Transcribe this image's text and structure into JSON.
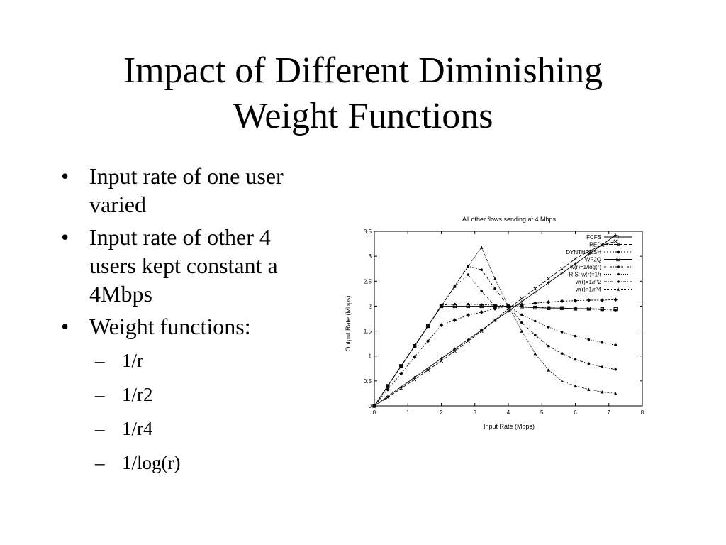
{
  "slide": {
    "title_line1": "Impact of Different Diminishing",
    "title_line2": "Weight Functions",
    "bullets": [
      {
        "marker": "•",
        "lines": [
          "Input rate of one user",
          "varied"
        ]
      },
      {
        "marker": "•",
        "lines": [
          "Input rate of other 4",
          "users kept constant a",
          "4Mbps"
        ]
      },
      {
        "marker": "•",
        "lines": [
          "Weight functions:"
        ]
      }
    ],
    "sub_bullets": [
      {
        "marker": "–",
        "text": "1/r"
      },
      {
        "marker": "–",
        "text": "1/r2"
      },
      {
        "marker": "–",
        "text": "1/r4"
      },
      {
        "marker": "–",
        "text": "1/log(r)"
      }
    ]
  },
  "chart_data": {
    "type": "line",
    "title": "All other flows sending at 4 Mbps",
    "xlabel": "Input Rate (Mbps)",
    "ylabel": "Output Rate (Mbps)",
    "xlim": [
      0,
      8
    ],
    "ylim": [
      0,
      3.5
    ],
    "x_ticks": [
      "0",
      "1",
      "2",
      "3",
      "4",
      "5",
      "6",
      "7",
      "8"
    ],
    "y_ticks": [
      "0",
      "0.5",
      "1",
      "1.5",
      "2",
      "2.5",
      "3",
      "3.5"
    ],
    "legend_position": "top-right",
    "grid": false,
    "series": [
      {
        "name": "FCFS",
        "marker": "+",
        "x": [
          0,
          0.4,
          0.8,
          1.2,
          1.6,
          2.0,
          2.4,
          2.8,
          3.2,
          3.6,
          4.0,
          4.4,
          4.8,
          5.2,
          5.6,
          6.0,
          6.4,
          6.8,
          7.2
        ],
        "values": [
          0,
          0.19,
          0.38,
          0.57,
          0.76,
          0.95,
          1.14,
          1.33,
          1.52,
          1.71,
          1.9,
          2.09,
          2.28,
          2.47,
          2.66,
          2.85,
          3.04,
          3.23,
          3.42
        ]
      },
      {
        "name": "RED",
        "marker": "x",
        "x": [
          0,
          0.4,
          0.8,
          1.2,
          1.6,
          2.0,
          2.4,
          2.8,
          3.2,
          3.6,
          4.0,
          4.4,
          4.8,
          5.2,
          5.6,
          6.0,
          6.4,
          6.8,
          7.2
        ],
        "values": [
          0,
          0.17,
          0.35,
          0.53,
          0.72,
          0.9,
          1.1,
          1.3,
          1.5,
          1.72,
          1.95,
          2.15,
          2.35,
          2.55,
          2.75,
          2.95,
          3.1,
          3.22,
          3.3
        ]
      },
      {
        "name": "DYNTHRESH",
        "marker": "diamond",
        "x": [
          0,
          0.4,
          0.8,
          1.2,
          1.6,
          2.0,
          2.4,
          2.8,
          3.2,
          3.6,
          4.0,
          4.4,
          4.8,
          5.2,
          5.6,
          6.0,
          6.4,
          6.8,
          7.2
        ],
        "values": [
          0,
          0.33,
          0.65,
          0.98,
          1.3,
          1.62,
          1.72,
          1.82,
          1.88,
          1.95,
          2.0,
          2.03,
          2.06,
          2.08,
          2.1,
          2.11,
          2.12,
          2.12,
          2.13
        ]
      },
      {
        "name": "WF2Q",
        "marker": "square",
        "x": [
          0,
          0.4,
          0.8,
          1.2,
          1.6,
          2.0,
          2.4,
          2.8,
          3.2,
          3.6,
          4.0,
          4.4,
          4.8,
          5.2,
          5.6,
          6.0,
          6.4,
          6.8,
          7.2
        ],
        "values": [
          0,
          0.4,
          0.8,
          1.2,
          1.6,
          2.0,
          2.0,
          2.0,
          2.0,
          2.0,
          2.0,
          1.98,
          1.97,
          1.96,
          1.96,
          1.95,
          1.95,
          1.94,
          1.94
        ]
      },
      {
        "name": "w(r)=1/log(r)",
        "marker": "dot",
        "x": [
          0,
          0.4,
          0.8,
          1.2,
          1.6,
          2.0,
          2.4,
          2.8,
          3.2,
          3.6,
          4.0,
          4.4,
          4.8,
          5.2,
          5.6,
          6.0,
          6.4,
          6.8,
          7.2
        ],
        "values": [
          0,
          0.4,
          0.8,
          1.2,
          1.6,
          2.02,
          2.04,
          2.04,
          2.03,
          2.02,
          2.0,
          1.99,
          1.98,
          1.97,
          1.96,
          1.95,
          1.94,
          1.93,
          1.92
        ]
      },
      {
        "name": "RIS: w(r)=1/r",
        "marker": "dot",
        "x": [
          0,
          0.4,
          0.8,
          1.2,
          1.6,
          2.0,
          2.4,
          2.8,
          3.2,
          3.6,
          4.0,
          4.4,
          4.8,
          5.2,
          5.6,
          6.0,
          6.4,
          6.8,
          7.2
        ],
        "values": [
          0,
          0.4,
          0.8,
          1.2,
          1.6,
          2.0,
          2.39,
          2.63,
          2.3,
          2.0,
          2.0,
          1.83,
          1.7,
          1.58,
          1.48,
          1.4,
          1.33,
          1.27,
          1.22
        ]
      },
      {
        "name": "w(r)=1/r^2",
        "marker": "dot",
        "x": [
          0,
          0.4,
          0.8,
          1.2,
          1.6,
          2.0,
          2.4,
          2.8,
          3.2,
          3.6,
          4.0,
          4.4,
          4.8,
          5.2,
          5.6,
          6.0,
          6.4,
          6.8,
          7.2
        ],
        "values": [
          0,
          0.4,
          0.8,
          1.2,
          1.6,
          2.0,
          2.4,
          2.8,
          2.73,
          2.35,
          2.0,
          1.67,
          1.42,
          1.2,
          1.05,
          0.93,
          0.85,
          0.78,
          0.73
        ]
      },
      {
        "name": "w(r)=1/r^4",
        "marker": "triangle",
        "x": [
          0,
          0.4,
          0.8,
          1.2,
          1.6,
          2.0,
          2.4,
          2.8,
          3.2,
          3.6,
          4.0,
          4.4,
          4.8,
          5.2,
          5.6,
          6.0,
          6.4,
          6.8,
          7.2
        ],
        "values": [
          0,
          0.4,
          0.8,
          1.2,
          1.6,
          2.0,
          2.4,
          2.8,
          3.18,
          2.55,
          2.0,
          1.5,
          1.05,
          0.72,
          0.5,
          0.4,
          0.33,
          0.28,
          0.25
        ]
      }
    ]
  }
}
